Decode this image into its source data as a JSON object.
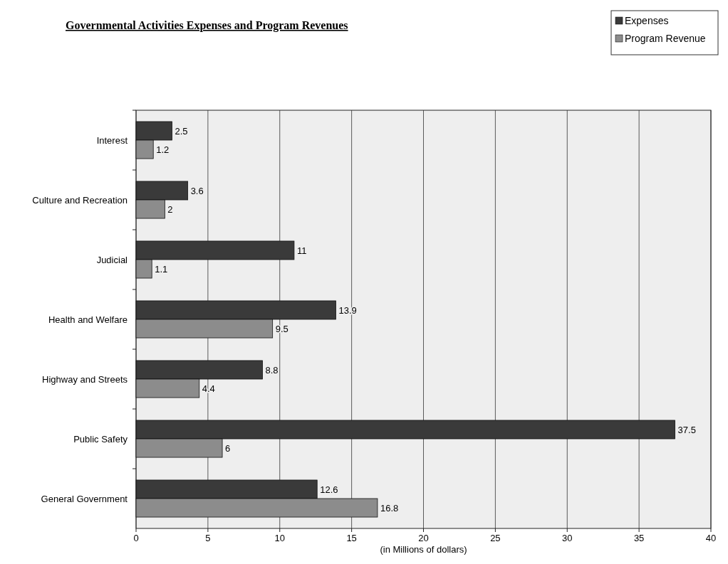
{
  "chart_data": {
    "type": "bar",
    "orientation": "horizontal",
    "title": "Governmental Activities Expenses and Program Revenues",
    "xlabel": "(in Millions of dollars)",
    "categories": [
      "Interest",
      "Culture and Recreation",
      "Judicial",
      "Health and Welfare",
      "Highway and Streets",
      "Public Safety",
      "General Government"
    ],
    "series": [
      {
        "name": "Expenses",
        "color": "#3a3a3a",
        "values": [
          2.5,
          3.6,
          11,
          13.9,
          8.8,
          37.5,
          12.6
        ]
      },
      {
        "name": "Program Revenue",
        "color": "#8c8c8c",
        "values": [
          1.2,
          2,
          1.1,
          9.5,
          4.4,
          6,
          16.8
        ]
      }
    ],
    "xlim": [
      0,
      40
    ],
    "xticks": [
      0,
      5,
      10,
      15,
      20,
      25,
      30,
      35,
      40
    ],
    "grid": "x",
    "legend": "top right",
    "data_labels": true
  }
}
